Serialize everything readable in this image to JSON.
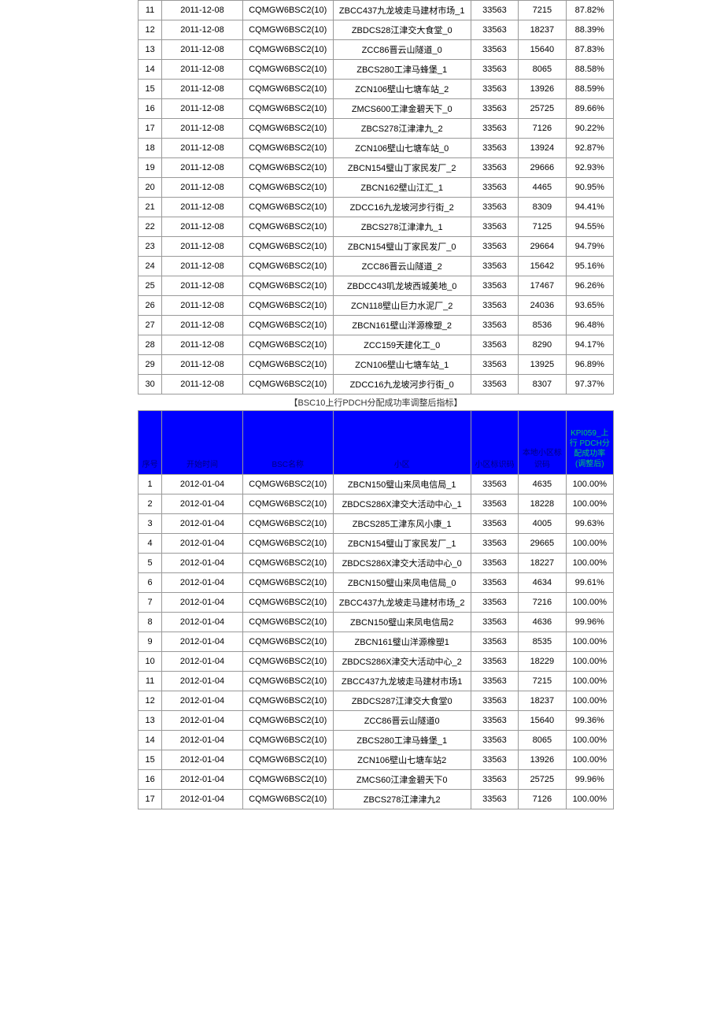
{
  "table1": {
    "columns": [
      "序号",
      "开始时间",
      "BSC名称",
      "小区",
      "小区标识码",
      "本地小区标识码",
      "KPI059_上行PDCH分配成功率(调整后)"
    ],
    "rows": [
      [
        "11",
        "2011-12-08",
        "CQMGW6BSC2(10)",
        "ZBCC437九龙坡走马建材市场_1",
        "33563",
        "7215",
        "87.82%"
      ],
      [
        "12",
        "2011-12-08",
        "CQMGW6BSC2(10)",
        "ZBDCS28江津交大食堂_0",
        "33563",
        "18237",
        "88.39%"
      ],
      [
        "13",
        "2011-12-08",
        "CQMGW6BSC2(10)",
        "ZCC86晋云山隧道_0",
        "33563",
        "15640",
        "87.83%"
      ],
      [
        "14",
        "2011-12-08",
        "CQMGW6BSC2(10)",
        "ZBCS280工津马蜂堡_1",
        "33563",
        "8065",
        "88.58%"
      ],
      [
        "15",
        "2011-12-08",
        "CQMGW6BSC2(10)",
        "ZCN106壁山七塘车站_2",
        "33563",
        "13926",
        "88.59%"
      ],
      [
        "16",
        "2011-12-08",
        "CQMGW6BSC2(10)",
        "ZMCS600工津金碧天下_0",
        "33563",
        "25725",
        "89.66%"
      ],
      [
        "17",
        "2011-12-08",
        "CQMGW6BSC2(10)",
        "ZBCS278江津津九_2",
        "33563",
        "7126",
        "90.22%"
      ],
      [
        "18",
        "2011-12-08",
        "CQMGW6BSC2(10)",
        "ZCN106壁山七塘车站_0",
        "33563",
        "13924",
        "92.87%"
      ],
      [
        "19",
        "2011-12-08",
        "CQMGW6BSC2(10)",
        "ZBCN154璧山丁家民发厂_2",
        "33563",
        "29666",
        "92.93%"
      ],
      [
        "20",
        "2011-12-08",
        "CQMGW6BSC2(10)",
        "ZBCN162壁山江汇_1",
        "33563",
        "4465",
        "90.95%"
      ],
      [
        "21",
        "2011-12-08",
        "CQMGW6BSC2(10)",
        "ZDCC16九龙坡河步行街_2",
        "33563",
        "8309",
        "94.41%"
      ],
      [
        "22",
        "2011-12-08",
        "CQMGW6BSC2(10)",
        "ZBCS278江津津九_1",
        "33563",
        "7125",
        "94.55%"
      ],
      [
        "23",
        "2011-12-08",
        "CQMGW6BSC2(10)",
        "ZBCN154璧山丁家民发厂_0",
        "33563",
        "29664",
        "94.79%"
      ],
      [
        "24",
        "2011-12-08",
        "CQMGW6BSC2(10)",
        "ZCC86晋云山隧道_2",
        "33563",
        "15642",
        "95.16%"
      ],
      [
        "25",
        "2011-12-08",
        "CQMGW6BSC2(10)",
        "ZBDCC43叽龙坡西城美地_0",
        "33563",
        "17467",
        "96.26%"
      ],
      [
        "26",
        "2011-12-08",
        "CQMGW6BSC2(10)",
        "ZCN118壁山巨力水泥厂_2",
        "33563",
        "24036",
        "93.65%"
      ],
      [
        "27",
        "2011-12-08",
        "CQMGW6BSC2(10)",
        "ZBCN161壁山洋源橡塑_2",
        "33563",
        "8536",
        "96.48%"
      ],
      [
        "28",
        "2011-12-08",
        "CQMGW6BSC2(10)",
        "ZCC159天建化工_0",
        "33563",
        "8290",
        "94.17%"
      ],
      [
        "29",
        "2011-12-08",
        "CQMGW6BSC2(10)",
        "ZCN106壁山七塘车站_1",
        "33563",
        "13925",
        "96.89%"
      ],
      [
        "30",
        "2011-12-08",
        "CQMGW6BSC2(10)",
        "ZDCC16九龙坡河步行街_0",
        "33563",
        "8307",
        "97.37%"
      ]
    ]
  },
  "caption": "【BSC10上行PDCH分配成功率调整后指标】",
  "table2": {
    "headers": {
      "seq": "序号",
      "date": "开始时间",
      "bsc": "BSC名称",
      "cell": "小区",
      "lac": "小区标识码",
      "ci": "本地小区标识码",
      "kpi_line1": "KPI059_上",
      "kpi_line2": "行 PDCH分",
      "kpi_line3": "配成功率",
      "kpi_line4": "(调整后)"
    },
    "rows": [
      [
        "1",
        "2012-01-04",
        "CQMGW6BSC2(10)",
        "ZBCN150璧山来凤电信局_1",
        "33563",
        "4635",
        "100.00%"
      ],
      [
        "2",
        "2012-01-04",
        "CQMGW6BSC2(10)",
        "ZBDCS286X津交大活动中心_1",
        "33563",
        "18228",
        "100.00%"
      ],
      [
        "3",
        "2012-01-04",
        "CQMGW6BSC2(10)",
        "ZBCS285工津东风小康_1",
        "33563",
        "4005",
        "99.63%"
      ],
      [
        "4",
        "2012-01-04",
        "CQMGW6BSC2(10)",
        "ZBCN154璧山丁家民发厂_1",
        "33563",
        "29665",
        "100.00%"
      ],
      [
        "5",
        "2012-01-04",
        "CQMGW6BSC2(10)",
        "ZBDCS286X津交大活动中心_0",
        "33563",
        "18227",
        "100.00%"
      ],
      [
        "6",
        "2012-01-04",
        "CQMGW6BSC2(10)",
        "ZBCN150璧山来凤电信局_0",
        "33563",
        "4634",
        "99.61%"
      ],
      [
        "7",
        "2012-01-04",
        "CQMGW6BSC2(10)",
        "ZBCC437九龙坡走马建材市场_2",
        "33563",
        "7216",
        "100.00%"
      ],
      [
        "8",
        "2012-01-04",
        "CQMGW6BSC2(10)",
        "ZBCN150璧山来凤电信局2",
        "33563",
        "4636",
        "99.96%"
      ],
      [
        "9",
        "2012-01-04",
        "CQMGW6BSC2(10)",
        "ZBCN161璧山洋源橡塑1",
        "33563",
        "8535",
        "100.00%"
      ],
      [
        "10",
        "2012-01-04",
        "CQMGW6BSC2(10)",
        "ZBDCS286X津交大活动中心_2",
        "33563",
        "18229",
        "100.00%"
      ],
      [
        "11",
        "2012-01-04",
        "CQMGW6BSC2(10)",
        "ZBCC437九龙坡走马建材市场1",
        "33563",
        "7215",
        "100.00%"
      ],
      [
        "12",
        "2012-01-04",
        "CQMGW6BSC2(10)",
        "ZBDCS287江津交大食堂0",
        "33563",
        "18237",
        "100.00%"
      ],
      [
        "13",
        "2012-01-04",
        "CQMGW6BSC2(10)",
        "ZCC86晋云山隧道0",
        "33563",
        "15640",
        "99.36%"
      ],
      [
        "14",
        "2012-01-04",
        "CQMGW6BSC2(10)",
        "ZBCS280工津马蜂堡_1",
        "33563",
        "8065",
        "100.00%"
      ],
      [
        "15",
        "2012-01-04",
        "CQMGW6BSC2(10)",
        "ZCN106壁山七塘车站2",
        "33563",
        "13926",
        "100.00%"
      ],
      [
        "16",
        "2012-01-04",
        "CQMGW6BSC2(10)",
        "ZMCS60江津金碧天下0",
        "33563",
        "25725",
        "99.96%"
      ],
      [
        "17",
        "2012-01-04",
        "CQMGW6BSC2(10)",
        "ZBCS278江津津九2",
        "33563",
        "7126",
        "100.00%"
      ]
    ]
  },
  "colors": {
    "header_bg": "#0000ff",
    "header_text": "#000080",
    "kpi_text": "#00cc66",
    "border": "#999999"
  }
}
